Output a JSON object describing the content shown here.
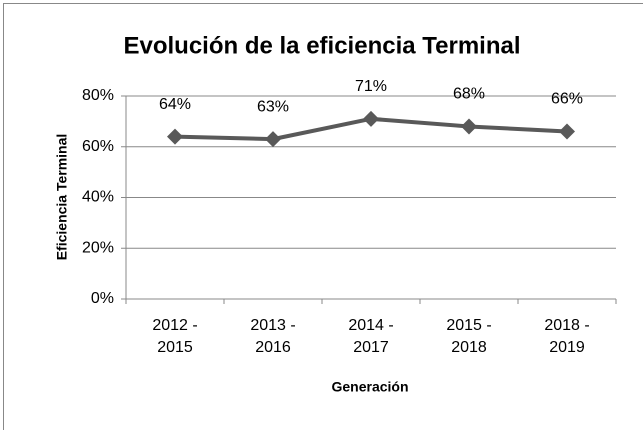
{
  "chart_data": {
    "type": "line",
    "title": "Evolución de la eficiencia Terminal",
    "x_label": "Generación",
    "y_label": "Eficiencia Terminal",
    "categories": [
      "2012 - 2015",
      "2013 - 2016",
      "2014 - 2017",
      "2015 - 2018",
      "2018 - 2019"
    ],
    "values": [
      64,
      63,
      71,
      68,
      66
    ],
    "value_labels": [
      "64%",
      "63%",
      "71%",
      "68%",
      "66%"
    ],
    "color": "#595959",
    "ylim": [
      0,
      80
    ],
    "yticks": [
      {
        "value": 0,
        "label": "0%"
      },
      {
        "value": 20,
        "label": "20%"
      },
      {
        "value": 40,
        "label": "40%"
      },
      {
        "value": 60,
        "label": "60%"
      },
      {
        "value": 80,
        "label": "80%"
      }
    ],
    "grid": true
  }
}
